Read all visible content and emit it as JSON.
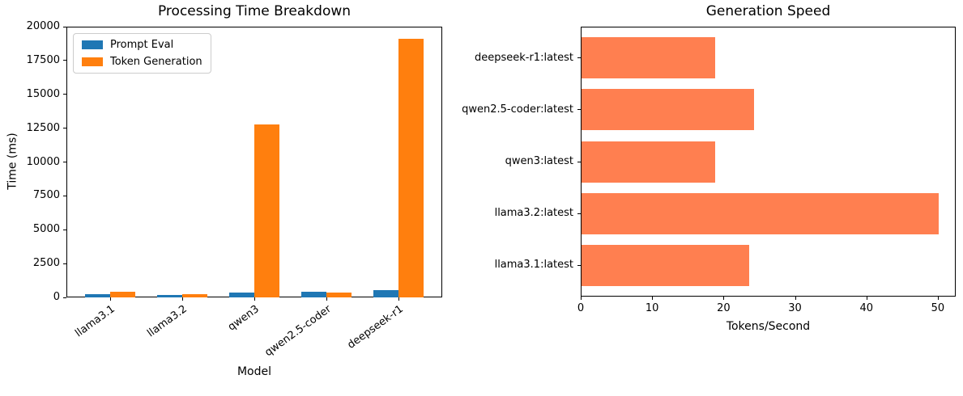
{
  "chart_data": [
    {
      "type": "bar",
      "title": "Processing Time Breakdown",
      "xlabel": "Model",
      "ylabel": "Time (ms)",
      "categories": [
        "llama3.1",
        "llama3.2",
        "qwen3",
        "qwen2.5-coder",
        "deepseek-r1"
      ],
      "series": [
        {
          "name": "Prompt Eval",
          "color": "#1f77b4",
          "values": [
            250,
            150,
            350,
            420,
            550
          ]
        },
        {
          "name": "Token Generation",
          "color": "#ff7f0e",
          "values": [
            400,
            250,
            12800,
            330,
            19100
          ]
        }
      ],
      "ylim": [
        0,
        20000
      ],
      "yticks": [
        0,
        2500,
        5000,
        7500,
        10000,
        12500,
        15000,
        17500,
        20000
      ],
      "legend_position": "upper-left",
      "grid": false,
      "xtick_rotation_deg": 36
    },
    {
      "type": "bar-horizontal",
      "title": "Generation Speed",
      "xlabel": "Tokens/Second",
      "categories": [
        "deepseek-r1:latest",
        "qwen2.5-coder:latest",
        "qwen3:latest",
        "llama3.2:latest",
        "llama3.1:latest"
      ],
      "values": [
        18.7,
        24.2,
        18.7,
        50.0,
        23.5
      ],
      "color": "#ff7f50",
      "xlim": [
        0,
        52.5
      ],
      "xticks": [
        0,
        10,
        20,
        30,
        40,
        50
      ],
      "grid": false
    }
  ]
}
